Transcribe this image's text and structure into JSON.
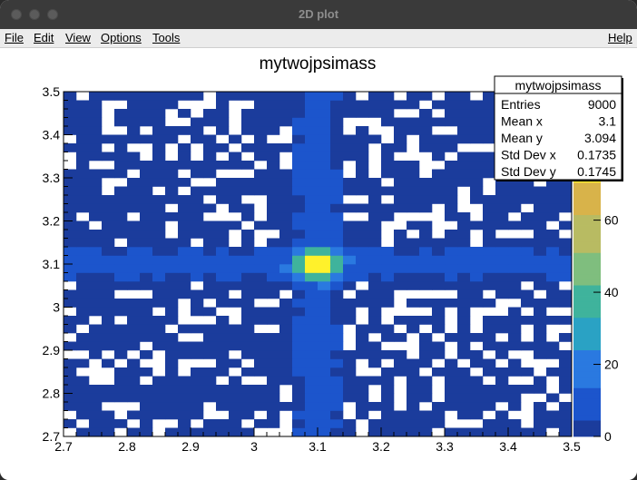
{
  "window": {
    "title": "2D plot"
  },
  "menu": {
    "file": "File",
    "edit": "Edit",
    "view": "View",
    "options": "Options",
    "tools": "Tools",
    "help": "Help"
  },
  "colors": {
    "palette": [
      "#1b3c9c",
      "#1c55cc",
      "#2a79e0",
      "#2aa2c4",
      "#3fb39c",
      "#7fbe7e",
      "#b8bb62",
      "#d8b34a",
      "#fff12b"
    ],
    "title_bar": "#3a3a3a",
    "menu_bar": "#ececec"
  },
  "chart_data": {
    "type": "heatmap",
    "title": "mytwojpsimass",
    "x_range": [
      2.7,
      3.5
    ],
    "y_range": [
      2.7,
      3.5
    ],
    "x_bins": 40,
    "y_bins": 40,
    "x_ticks": [
      "2.7",
      "2.8",
      "2.9",
      "3",
      "3.1",
      "3.2",
      "3.3",
      "3.4",
      "3.5"
    ],
    "y_ticks": [
      "2.7",
      "2.8",
      "2.9",
      "3",
      "3.1",
      "3.2",
      "3.3",
      "3.4",
      "3.5"
    ],
    "z_range": [
      0,
      75
    ],
    "z_ticks": [
      "0",
      "20",
      "40",
      "60"
    ],
    "peak": {
      "x": 3.1,
      "y": 3.1,
      "value": 75
    },
    "stats": {
      "title": "mytwojpsimass",
      "rows": [
        {
          "label": "Entries",
          "value": "9000"
        },
        {
          "label": "Mean x",
          "value": "3.1"
        },
        {
          "label": "Mean y",
          "value": "3.094"
        },
        {
          "label": "Std Dev x",
          "value": "0.1735"
        },
        {
          "label": "Std Dev y",
          "value": "0.1745"
        }
      ]
    },
    "legend": "colorbar at right",
    "grid": false
  }
}
